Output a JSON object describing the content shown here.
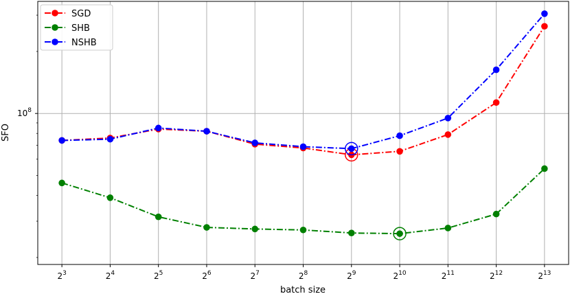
{
  "chart_data": {
    "type": "line",
    "title": "",
    "xlabel": "batch size",
    "ylabel": "SFO",
    "x_scale": "log2",
    "y_scale": "log",
    "ylim": [
      18500000,
      350000000
    ],
    "grid": true,
    "legend_position": "top-left",
    "x": [
      8,
      16,
      32,
      64,
      128,
      256,
      512,
      1024,
      2048,
      4096,
      8192
    ],
    "x_tick_labels": [
      {
        "base": "2",
        "exp": "3"
      },
      {
        "base": "2",
        "exp": "4"
      },
      {
        "base": "2",
        "exp": "5"
      },
      {
        "base": "2",
        "exp": "6"
      },
      {
        "base": "2",
        "exp": "7"
      },
      {
        "base": "2",
        "exp": "8"
      },
      {
        "base": "2",
        "exp": "9"
      },
      {
        "base": "2",
        "exp": "10"
      },
      {
        "base": "2",
        "exp": "11"
      },
      {
        "base": "2",
        "exp": "12"
      },
      {
        "base": "2",
        "exp": "13"
      }
    ],
    "y_tick_labels": [
      {
        "value": 100000000,
        "base": "10",
        "exp": "8"
      }
    ],
    "series": [
      {
        "name": "SGD",
        "color": "#ff0000",
        "values": [
          74000000,
          76000000,
          84000000,
          82000000,
          71000000,
          68000000,
          63000000,
          65500000,
          79000000,
          113000000,
          265000000
        ],
        "optimum_index": 6
      },
      {
        "name": "SHB",
        "color": "#008000",
        "values": [
          46000000,
          39000000,
          31500000,
          28000000,
          27500000,
          27200000,
          26300000,
          26100000,
          27800000,
          32500000,
          54000000
        ],
        "optimum_index": 7
      },
      {
        "name": "NSHB",
        "color": "#0000ff",
        "values": [
          74000000,
          75000000,
          85000000,
          82000000,
          72000000,
          69000000,
          67500000,
          78000000,
          95000000,
          163000000,
          305000000
        ],
        "optimum_index": 6
      }
    ]
  }
}
